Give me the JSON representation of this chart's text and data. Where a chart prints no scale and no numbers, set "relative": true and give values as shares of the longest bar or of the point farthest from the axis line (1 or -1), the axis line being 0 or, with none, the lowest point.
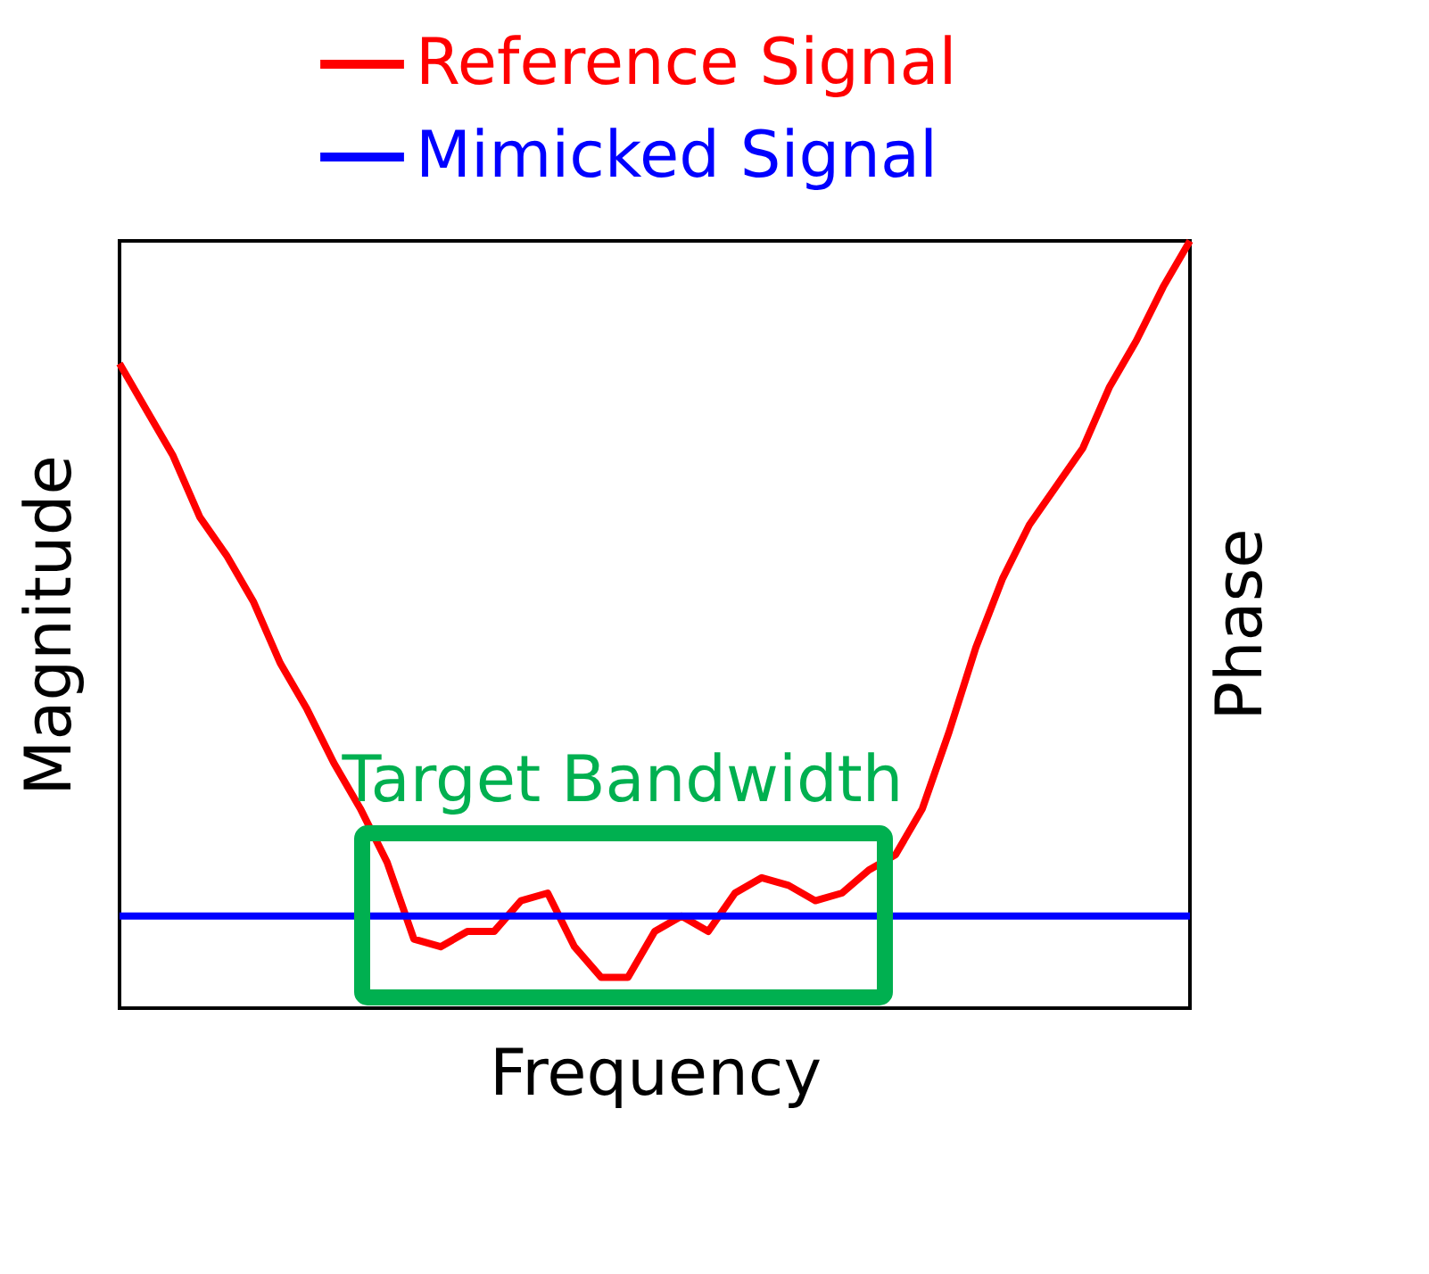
{
  "chart_data": {
    "type": "line",
    "relative": true,
    "xlabel": "Frequency",
    "ylabel": "Magnitude",
    "y2label": "Phase",
    "categories": [
      null,
      null,
      null,
      null,
      null,
      null,
      null,
      null,
      null,
      null,
      null,
      null,
      null,
      null,
      null,
      null,
      null,
      null,
      null,
      null,
      null,
      null,
      null,
      null,
      null,
      null,
      null,
      null,
      null,
      null,
      null,
      null,
      null,
      null,
      null,
      null,
      null,
      null,
      null,
      null,
      null
    ],
    "series": [
      {
        "name": "Reference Signal",
        "color": "#ff0000",
        "values": [
          0.84,
          0.78,
          0.72,
          0.64,
          0.59,
          0.53,
          0.45,
          0.39,
          0.32,
          0.26,
          0.19,
          0.09,
          0.08,
          0.1,
          0.1,
          0.14,
          0.15,
          0.08,
          0.04,
          0.04,
          0.1,
          0.12,
          0.1,
          0.15,
          0.17,
          0.16,
          0.14,
          0.15,
          0.18,
          0.2,
          0.26,
          0.36,
          0.47,
          0.56,
          0.63,
          0.68,
          0.73,
          0.81,
          0.87,
          0.94,
          1.0
        ]
      },
      {
        "name": "Mimicked Signal",
        "color": "#0000ff",
        "values": [
          0.12,
          0.12,
          0.12,
          0.12,
          0.12,
          0.12,
          0.12,
          0.12,
          0.12,
          0.12,
          0.12,
          0.12,
          0.12,
          0.12,
          0.12,
          0.12,
          0.12,
          0.12,
          0.12,
          0.12,
          0.12,
          0.12,
          0.12,
          0.12,
          0.12,
          0.12,
          0.12,
          0.12,
          0.12,
          0.12,
          0.12,
          0.12,
          0.12,
          0.12,
          0.12,
          0.12,
          0.12,
          0.12,
          0.12,
          0.12,
          0.12
        ]
      }
    ],
    "annotations": [
      "Target Bandwidth"
    ],
    "legend": "top right",
    "grid": false,
    "marker": "none",
    "line_style": "solid"
  }
}
